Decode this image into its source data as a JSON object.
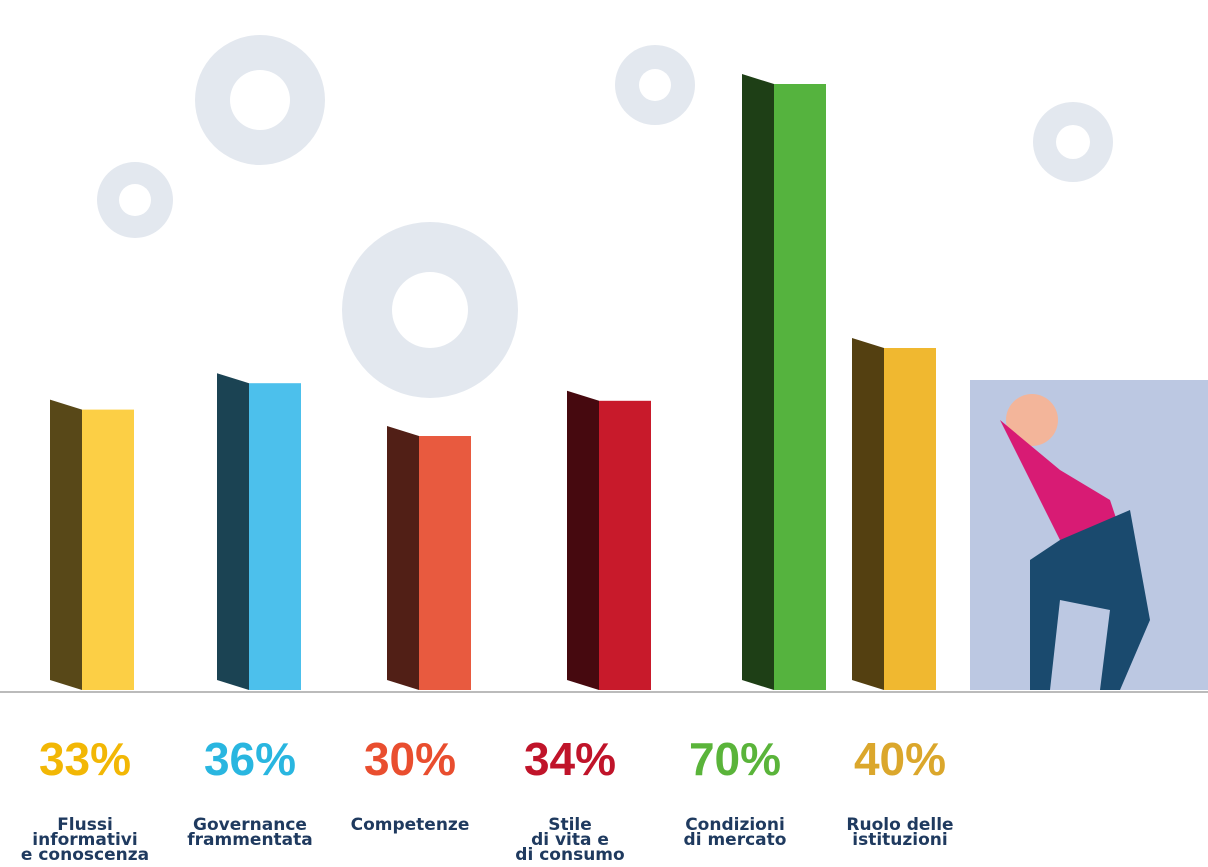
{
  "chart_data": {
    "type": "bar",
    "categories": [
      [
        "Flussi",
        "informativi",
        "e conoscenza"
      ],
      [
        "Governance",
        "frammentata"
      ],
      [
        "Competenze"
      ],
      [
        "Stile",
        "di vita e",
        "di consumo"
      ],
      [
        "Condizioni",
        "di mercato"
      ],
      [
        "Ruolo delle",
        "istituzioni"
      ]
    ],
    "values": [
      33,
      36,
      30,
      34,
      70,
      40
    ],
    "value_labels": [
      "33%",
      "36%",
      "30%",
      "34%",
      "70%",
      "40%"
    ],
    "colors": [
      "#fccf45",
      "#4cc0ec",
      "#e85a3f",
      "#c81a2b",
      "#55b33e",
      "#f0b830"
    ],
    "label_colors": [
      "#f2b705",
      "#29b6e0",
      "#e94e2f",
      "#c0142a",
      "#5ab43a",
      "#dba72c"
    ],
    "ylim": [
      0,
      75
    ]
  }
}
